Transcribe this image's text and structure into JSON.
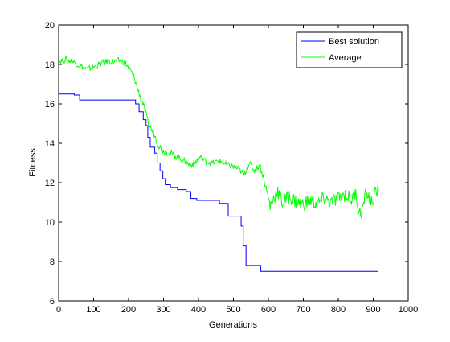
{
  "chart_data": {
    "type": "line",
    "xlabel": "Generations",
    "ylabel": "Fitness",
    "xlim": [
      0,
      1000
    ],
    "ylim": [
      6,
      20
    ],
    "xticks": [
      0,
      100,
      200,
      300,
      400,
      500,
      600,
      700,
      800,
      900,
      1000
    ],
    "yticks": [
      6,
      8,
      10,
      12,
      14,
      16,
      18,
      20
    ],
    "grid": false,
    "legend_position": "top-right",
    "series": [
      {
        "name": "Best solution",
        "color": "#0000ff",
        "style": "step",
        "points": [
          [
            0,
            16.5
          ],
          [
            45,
            16.5
          ],
          [
            45,
            16.45
          ],
          [
            60,
            16.45
          ],
          [
            60,
            16.2
          ],
          [
            220,
            16.2
          ],
          [
            220,
            16.0
          ],
          [
            230,
            16.0
          ],
          [
            230,
            15.6
          ],
          [
            242,
            15.6
          ],
          [
            242,
            15.2
          ],
          [
            250,
            15.2
          ],
          [
            250,
            14.9
          ],
          [
            255,
            14.9
          ],
          [
            255,
            14.3
          ],
          [
            262,
            14.3
          ],
          [
            262,
            13.8
          ],
          [
            275,
            13.8
          ],
          [
            275,
            13.5
          ],
          [
            282,
            13.5
          ],
          [
            282,
            13.0
          ],
          [
            290,
            13.0
          ],
          [
            290,
            12.6
          ],
          [
            298,
            12.6
          ],
          [
            298,
            12.2
          ],
          [
            305,
            12.2
          ],
          [
            305,
            11.9
          ],
          [
            320,
            11.9
          ],
          [
            320,
            11.75
          ],
          [
            340,
            11.75
          ],
          [
            340,
            11.65
          ],
          [
            365,
            11.65
          ],
          [
            365,
            11.55
          ],
          [
            378,
            11.55
          ],
          [
            378,
            11.2
          ],
          [
            395,
            11.2
          ],
          [
            395,
            11.1
          ],
          [
            460,
            11.1
          ],
          [
            460,
            10.95
          ],
          [
            485,
            10.95
          ],
          [
            485,
            10.3
          ],
          [
            522,
            10.3
          ],
          [
            522,
            9.8
          ],
          [
            528,
            9.8
          ],
          [
            528,
            8.8
          ],
          [
            536,
            8.8
          ],
          [
            536,
            7.8
          ],
          [
            578,
            7.8
          ],
          [
            578,
            7.5
          ],
          [
            915,
            7.5
          ]
        ]
      },
      {
        "name": "Average",
        "color": "#00ff00",
        "style": "noisy",
        "points": [
          [
            0,
            18.15
          ],
          [
            20,
            18.25
          ],
          [
            40,
            18.15
          ],
          [
            60,
            17.95
          ],
          [
            80,
            17.75
          ],
          [
            100,
            17.85
          ],
          [
            120,
            18.05
          ],
          [
            140,
            18.15
          ],
          [
            160,
            18.15
          ],
          [
            175,
            18.2
          ],
          [
            190,
            18.1
          ],
          [
            205,
            17.7
          ],
          [
            215,
            17.4
          ],
          [
            225,
            16.8
          ],
          [
            235,
            16.3
          ],
          [
            245,
            15.8
          ],
          [
            255,
            15.1
          ],
          [
            265,
            14.7
          ],
          [
            275,
            14.4
          ],
          [
            285,
            13.9
          ],
          [
            300,
            13.6
          ],
          [
            320,
            13.5
          ],
          [
            340,
            13.3
          ],
          [
            360,
            13.1
          ],
          [
            375,
            12.9
          ],
          [
            390,
            13.0
          ],
          [
            405,
            13.3
          ],
          [
            420,
            13.1
          ],
          [
            440,
            13.0
          ],
          [
            460,
            13.1
          ],
          [
            480,
            12.9
          ],
          [
            500,
            12.8
          ],
          [
            515,
            12.7
          ],
          [
            530,
            12.4
          ],
          [
            545,
            13.0
          ],
          [
            560,
            12.6
          ],
          [
            575,
            12.9
          ],
          [
            585,
            12.3
          ],
          [
            595,
            11.6
          ],
          [
            605,
            10.8
          ],
          [
            615,
            11.2
          ],
          [
            625,
            11.6
          ],
          [
            640,
            11.0
          ],
          [
            660,
            11.3
          ],
          [
            680,
            11.0
          ],
          [
            700,
            10.9
          ],
          [
            720,
            11.1
          ],
          [
            740,
            10.9
          ],
          [
            760,
            11.2
          ],
          [
            780,
            11.0
          ],
          [
            800,
            11.2
          ],
          [
            820,
            11.4
          ],
          [
            840,
            11.1
          ],
          [
            850,
            11.6
          ],
          [
            860,
            10.4
          ],
          [
            870,
            10.7
          ],
          [
            880,
            11.5
          ],
          [
            895,
            11.0
          ],
          [
            905,
            11.4
          ],
          [
            915,
            11.6
          ]
        ]
      }
    ]
  }
}
